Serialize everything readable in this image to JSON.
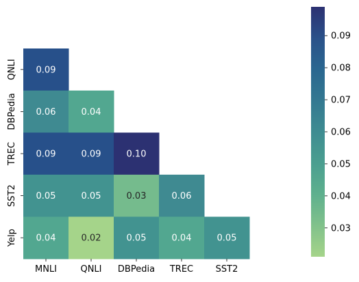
{
  "chart_data": {
    "type": "heatmap",
    "title": "",
    "xlabel": "",
    "ylabel": "",
    "x_categories": [
      "MNLI",
      "QNLI",
      "DBPedia",
      "TREC",
      "SST2"
    ],
    "y_categories": [
      "QNLI",
      "DBPedia",
      "TREC",
      "SST2",
      "Yelp"
    ],
    "values": [
      [
        0.09,
        null,
        null,
        null,
        null
      ],
      [
        0.06,
        0.04,
        null,
        null,
        null
      ],
      [
        0.09,
        0.09,
        0.1,
        null,
        null
      ],
      [
        0.05,
        0.05,
        0.03,
        0.06,
        null
      ],
      [
        0.04,
        0.02,
        0.05,
        0.04,
        0.05
      ]
    ],
    "value_labels": [
      [
        "0.09",
        "",
        "",
        "",
        ""
      ],
      [
        "0.06",
        "0.04",
        "",
        "",
        ""
      ],
      [
        "0.09",
        "0.09",
        "0.10",
        "",
        ""
      ],
      [
        "0.05",
        "0.05",
        "0.03",
        "0.06",
        ""
      ],
      [
        "0.04",
        "0.02",
        "0.05",
        "0.04",
        "0.05"
      ]
    ],
    "mask": "upper-triangle",
    "colormap": "crest",
    "colorbar": {
      "range": [
        0.021,
        0.099
      ],
      "ticks": [
        0.03,
        0.04,
        0.05,
        0.06,
        0.07,
        0.08,
        0.09
      ],
      "tick_labels": [
        "0.03",
        "0.04",
        "0.05",
        "0.06",
        "0.07",
        "0.08",
        "0.09"
      ]
    },
    "colors": {
      "0.02": "#a5d48a",
      "0.03": "#75bb8d",
      "0.04": "#52a790",
      "0.05": "#429390",
      "0.06": "#3f8a91",
      "0.09": "#27508a",
      "0.10": "#2c3172"
    }
  }
}
